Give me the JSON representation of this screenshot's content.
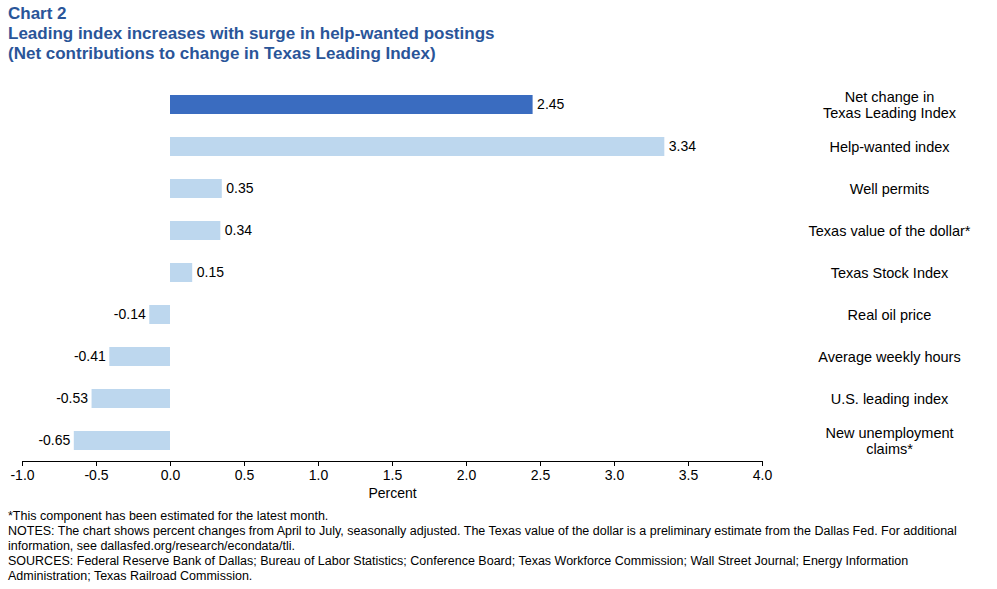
{
  "chart_data": {
    "type": "bar",
    "orientation": "horizontal",
    "title": "Chart 2",
    "subtitle": [
      "Leading index increases with surge in help-wanted postings",
      "(Net contributions to change in Texas Leading Index)"
    ],
    "categories": [
      "Net change in\nTexas Leading Index",
      "Help-wanted index",
      "Well permits",
      "Texas value of the dollar*",
      "Texas Stock Index",
      "Real oil price",
      "Average weekly hours",
      "U.S. leading index",
      "New unemployment\nclaims*"
    ],
    "values": [
      2.45,
      3.34,
      0.35,
      0.34,
      0.15,
      -0.14,
      -0.41,
      -0.53,
      -0.65
    ],
    "colors": [
      "#3a6cc0",
      "#bdd7ee",
      "#bdd7ee",
      "#bdd7ee",
      "#bdd7ee",
      "#bdd7ee",
      "#bdd7ee",
      "#bdd7ee",
      "#bdd7ee"
    ],
    "data_labels": true,
    "x_label": "Percent",
    "xlim": [
      -1.0,
      4.0
    ],
    "xticks": [
      {
        "value": -1.0,
        "label": "-1.0"
      },
      -0.5,
      {
        "value": 0,
        "label": "0.0"
      },
      0.5,
      {
        "value": 1.0,
        "label": "1.0"
      },
      1.5,
      {
        "value": 2.0,
        "label": "2.0"
      },
      2.5,
      {
        "value": 3.0,
        "label": "3.0"
      },
      3.5,
      {
        "value": 4.0,
        "label": "4.0"
      }
    ],
    "grid": false,
    "notes": [
      "*This component has been estimated for the latest month.",
      "NOTES: The chart shows percent changes from April to July, seasonally adjusted. The Texas value of the dollar is a preliminary estimate from the Dallas Fed. For additional information, see dallasfed.org/research/econdata/tli.",
      "SOURCES: Federal Reserve Bank of Dallas; Bureau of Labor Statistics; Conference Board; Texas Workforce Commission; Wall Street Journal; Energy Information Administration; Texas Railroad Commission."
    ]
  }
}
